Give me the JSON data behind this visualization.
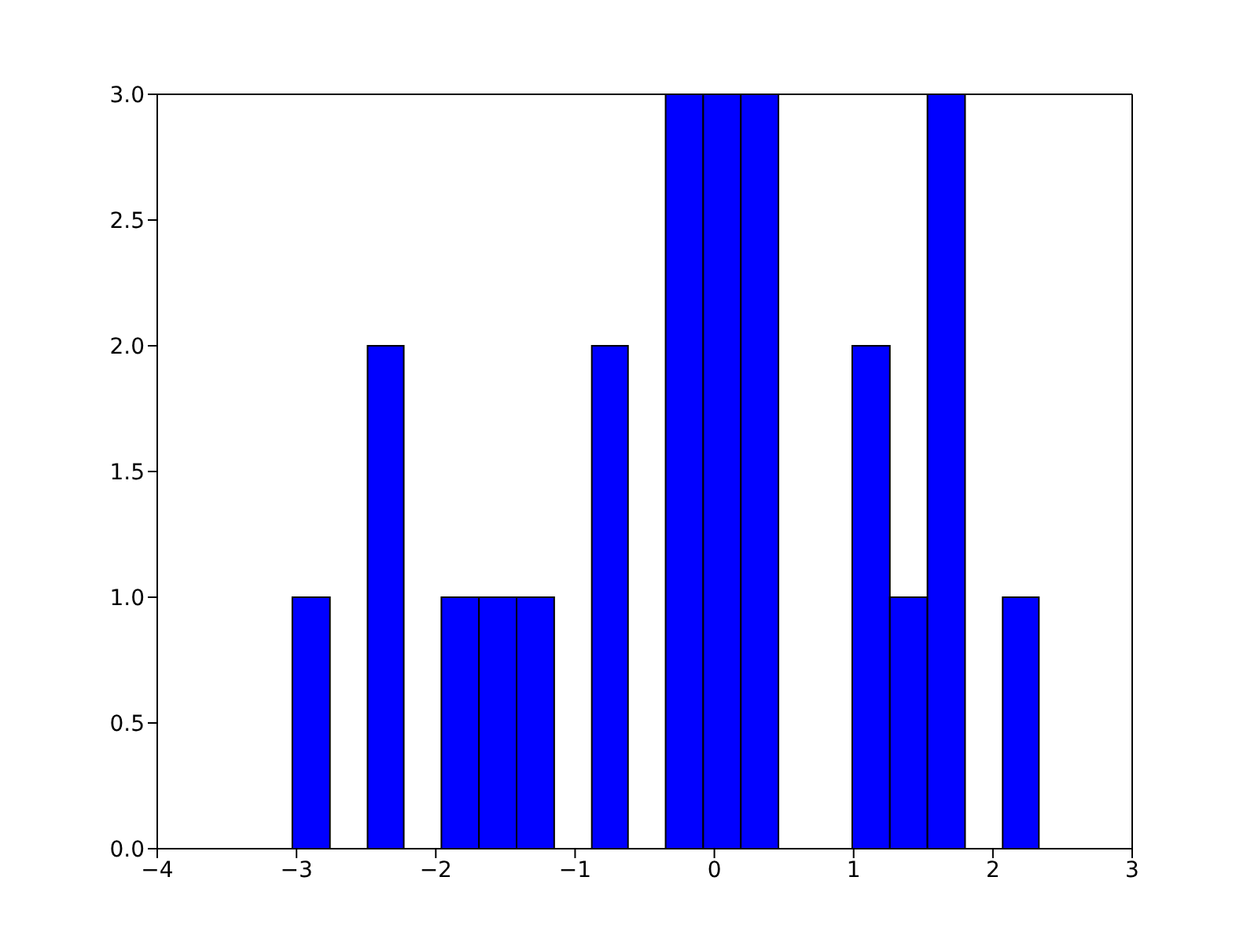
{
  "chart_data": {
    "type": "histogram",
    "bins": [
      -3.03,
      -2.76,
      -2.49,
      -2.23,
      -1.96,
      -1.69,
      -1.42,
      -1.15,
      -0.88,
      -0.62,
      -0.35,
      -0.08,
      0.19,
      0.46,
      0.99,
      1.26,
      1.53,
      1.8,
      2.07,
      2.33
    ],
    "values": [
      1,
      0,
      2,
      0,
      1,
      1,
      1,
      0,
      2,
      0,
      3,
      3,
      3,
      0,
      2,
      1,
      3,
      0,
      1
    ],
    "color": "#0000ff",
    "xlim": [
      -4,
      3
    ],
    "xticks": [
      {
        "value": -4,
        "label": "−4"
      },
      {
        "value": -3,
        "label": "−3"
      },
      {
        "value": -2,
        "label": "−2"
      },
      {
        "value": -1,
        "label": "−1"
      },
      0,
      1,
      2,
      3
    ],
    "ylim": [
      0,
      3
    ],
    "yticks": [
      {
        "value": 0,
        "label": "0.0"
      },
      {
        "value": 0.5,
        "label": "0.5"
      },
      {
        "value": 1,
        "label": "1.0"
      },
      {
        "value": 1.5,
        "label": "1.5"
      },
      {
        "value": 2,
        "label": "2.0"
      },
      {
        "value": 2.5,
        "label": "2.5"
      },
      {
        "value": 3,
        "label": "3.0"
      }
    ],
    "grid": false
  }
}
